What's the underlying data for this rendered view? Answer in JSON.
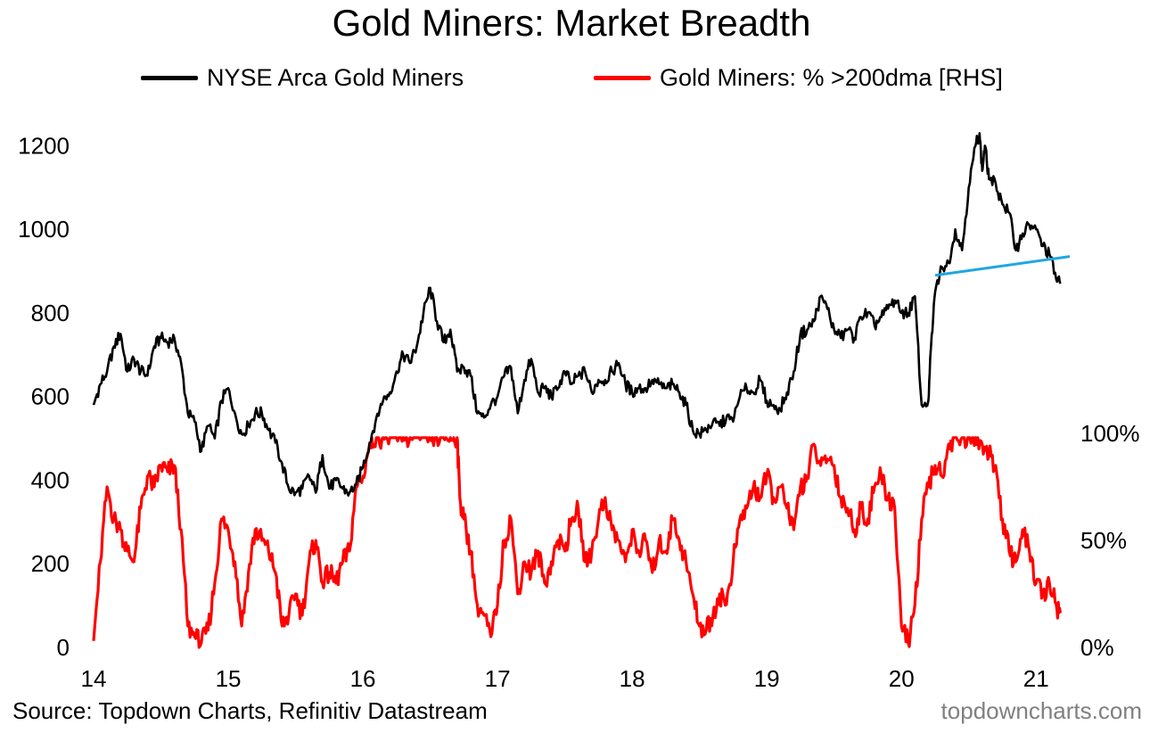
{
  "title": "Gold Miners: Market Breadth",
  "source": "Source: Topdown Charts, Refinitiv Datastream",
  "brand": "topdowncharts.com",
  "colors": {
    "index": "#000000",
    "breadth": "#ff0000",
    "trendline": "#1ea7e1"
  },
  "chart_data": {
    "type": "line",
    "title": "Gold Miners: Market Breadth",
    "legend_position": "top",
    "grid": false,
    "x_tick_labels": [
      "14",
      "15",
      "16",
      "17",
      "18",
      "19",
      "20",
      "21"
    ],
    "x_range": [
      2014.0,
      2021.25
    ],
    "y_left": {
      "ticks": [
        "0",
        "200",
        "400",
        "600",
        "800",
        "1000",
        "1200"
      ],
      "range": [
        0,
        1250
      ]
    },
    "y_right": {
      "ticks": [
        "0%",
        "50%",
        "100%"
      ],
      "range": [
        0,
        100
      ]
    },
    "series": [
      {
        "name": "NYSE Arca Gold Miners",
        "axis": "left",
        "color": "#000000",
        "x": [
          2014.0,
          2014.05,
          2014.1,
          2014.15,
          2014.2,
          2014.25,
          2014.3,
          2014.35,
          2014.4,
          2014.45,
          2014.5,
          2014.55,
          2014.6,
          2014.65,
          2014.7,
          2014.75,
          2014.8,
          2014.85,
          2014.9,
          2014.95,
          2015.0,
          2015.05,
          2015.1,
          2015.15,
          2015.2,
          2015.25,
          2015.3,
          2015.35,
          2015.4,
          2015.45,
          2015.5,
          2015.55,
          2015.6,
          2015.65,
          2015.7,
          2015.75,
          2015.8,
          2015.85,
          2015.9,
          2015.95,
          2016.0,
          2016.05,
          2016.1,
          2016.15,
          2016.2,
          2016.25,
          2016.3,
          2016.35,
          2016.4,
          2016.45,
          2016.5,
          2016.55,
          2016.6,
          2016.65,
          2016.7,
          2016.75,
          2016.8,
          2016.85,
          2016.9,
          2016.95,
          2017.0,
          2017.05,
          2017.1,
          2017.15,
          2017.2,
          2017.25,
          2017.3,
          2017.35,
          2017.4,
          2017.45,
          2017.5,
          2017.55,
          2017.6,
          2017.65,
          2017.7,
          2017.75,
          2017.8,
          2017.85,
          2017.9,
          2017.95,
          2018.0,
          2018.05,
          2018.1,
          2018.15,
          2018.2,
          2018.25,
          2018.3,
          2018.35,
          2018.4,
          2018.45,
          2018.5,
          2018.55,
          2018.6,
          2018.65,
          2018.7,
          2018.75,
          2018.8,
          2018.85,
          2018.9,
          2018.95,
          2019.0,
          2019.05,
          2019.1,
          2019.15,
          2019.2,
          2019.25,
          2019.3,
          2019.35,
          2019.4,
          2019.45,
          2019.5,
          2019.55,
          2019.6,
          2019.65,
          2019.7,
          2019.75,
          2019.8,
          2019.85,
          2019.9,
          2019.95,
          2020.0,
          2020.05,
          2020.1,
          2020.15,
          2020.2,
          2020.22,
          2020.25,
          2020.3,
          2020.35,
          2020.4,
          2020.45,
          2020.5,
          2020.55,
          2020.58,
          2020.6,
          2020.62,
          2020.65,
          2020.7,
          2020.75,
          2020.8,
          2020.85,
          2020.9,
          2020.95,
          2021.0,
          2021.05,
          2021.1,
          2021.15,
          2021.18
        ],
        "values": [
          580,
          630,
          660,
          720,
          750,
          660,
          690,
          660,
          650,
          720,
          740,
          730,
          740,
          680,
          560,
          540,
          470,
          530,
          500,
          590,
          620,
          560,
          510,
          530,
          560,
          560,
          520,
          490,
          440,
          380,
          370,
          380,
          410,
          370,
          460,
          380,
          400,
          380,
          370,
          390,
          430,
          490,
          550,
          590,
          610,
          660,
          700,
          680,
          720,
          800,
          860,
          780,
          730,
          760,
          660,
          670,
          650,
          560,
          550,
          580,
          600,
          650,
          670,
          560,
          640,
          690,
          610,
          620,
          600,
          620,
          660,
          630,
          650,
          660,
          610,
          640,
          640,
          660,
          680,
          630,
          610,
          620,
          620,
          640,
          630,
          620,
          630,
          610,
          580,
          520,
          510,
          520,
          540,
          530,
          550,
          540,
          600,
          620,
          610,
          640,
          590,
          580,
          570,
          610,
          660,
          750,
          760,
          780,
          840,
          810,
          760,
          740,
          760,
          740,
          790,
          800,
          770,
          790,
          810,
          830,
          800,
          800,
          840,
          580,
          590,
          720,
          850,
          910,
          920,
          1000,
          950,
          1100,
          1200,
          1230,
          1140,
          1200,
          1120,
          1110,
          1060,
          1040,
          950,
          990,
          1010,
          1000,
          960,
          940,
          880,
          870
        ]
      },
      {
        "name": "Gold Miners: % >200dma [RHS]",
        "axis": "right",
        "color": "#ff0000",
        "x": [
          2014.0,
          2014.05,
          2014.1,
          2014.15,
          2014.2,
          2014.25,
          2014.3,
          2014.35,
          2014.4,
          2014.45,
          2014.5,
          2014.55,
          2014.6,
          2014.65,
          2014.7,
          2014.75,
          2014.8,
          2014.85,
          2014.9,
          2014.95,
          2015.0,
          2015.05,
          2015.1,
          2015.15,
          2015.2,
          2015.25,
          2015.3,
          2015.35,
          2015.4,
          2015.45,
          2015.5,
          2015.55,
          2015.6,
          2015.65,
          2015.7,
          2015.75,
          2015.8,
          2015.85,
          2015.9,
          2015.95,
          2016.0,
          2016.05,
          2016.1,
          2016.15,
          2016.2,
          2016.25,
          2016.3,
          2016.35,
          2016.4,
          2016.45,
          2016.5,
          2016.55,
          2016.6,
          2016.65,
          2016.7,
          2016.72,
          2016.75,
          2016.8,
          2016.85,
          2016.9,
          2016.95,
          2017.0,
          2017.05,
          2017.1,
          2017.15,
          2017.2,
          2017.25,
          2017.3,
          2017.35,
          2017.4,
          2017.45,
          2017.5,
          2017.55,
          2017.6,
          2017.65,
          2017.7,
          2017.75,
          2017.8,
          2017.85,
          2017.9,
          2017.95,
          2018.0,
          2018.05,
          2018.1,
          2018.15,
          2018.2,
          2018.25,
          2018.3,
          2018.35,
          2018.4,
          2018.45,
          2018.5,
          2018.55,
          2018.6,
          2018.65,
          2018.7,
          2018.75,
          2018.8,
          2018.85,
          2018.9,
          2018.95,
          2019.0,
          2019.05,
          2019.1,
          2019.15,
          2019.2,
          2019.25,
          2019.3,
          2019.35,
          2019.4,
          2019.45,
          2019.5,
          2019.55,
          2019.6,
          2019.65,
          2019.7,
          2019.75,
          2019.8,
          2019.85,
          2019.9,
          2019.95,
          2020.0,
          2020.05,
          2020.1,
          2020.15,
          2020.2,
          2020.25,
          2020.3,
          2020.35,
          2020.4,
          2020.45,
          2020.5,
          2020.55,
          2020.6,
          2020.65,
          2020.7,
          2020.75,
          2020.8,
          2020.85,
          2020.9,
          2020.95,
          2021.0,
          2021.05,
          2021.1,
          2021.15,
          2021.18
        ],
        "values": [
          3,
          40,
          75,
          60,
          55,
          45,
          40,
          65,
          80,
          75,
          85,
          82,
          85,
          55,
          10,
          5,
          2,
          8,
          30,
          60,
          55,
          40,
          10,
          35,
          55,
          50,
          45,
          35,
          10,
          15,
          25,
          15,
          40,
          50,
          30,
          35,
          30,
          40,
          45,
          75,
          80,
          95,
          98,
          98,
          98,
          98,
          98,
          98,
          98,
          98,
          98,
          98,
          98,
          98,
          98,
          70,
          60,
          45,
          20,
          15,
          5,
          20,
          50,
          60,
          25,
          40,
          35,
          45,
          30,
          40,
          50,
          45,
          60,
          65,
          40,
          45,
          60,
          70,
          55,
          50,
          40,
          55,
          45,
          50,
          35,
          50,
          45,
          60,
          50,
          40,
          25,
          10,
          8,
          15,
          25,
          20,
          40,
          60,
          65,
          75,
          70,
          80,
          70,
          75,
          65,
          55,
          75,
          80,
          95,
          85,
          88,
          85,
          70,
          65,
          55,
          65,
          60,
          75,
          80,
          70,
          65,
          10,
          2,
          20,
          60,
          75,
          85,
          80,
          95,
          98,
          98,
          98,
          98,
          95,
          90,
          85,
          60,
          45,
          40,
          55,
          45,
          30,
          25,
          30,
          20,
          16
        ]
      }
    ],
    "trendline": {
      "axis": "left",
      "color": "#1ea7e1",
      "x": [
        2020.25,
        2021.25
      ],
      "values": [
        890,
        935
      ]
    }
  }
}
